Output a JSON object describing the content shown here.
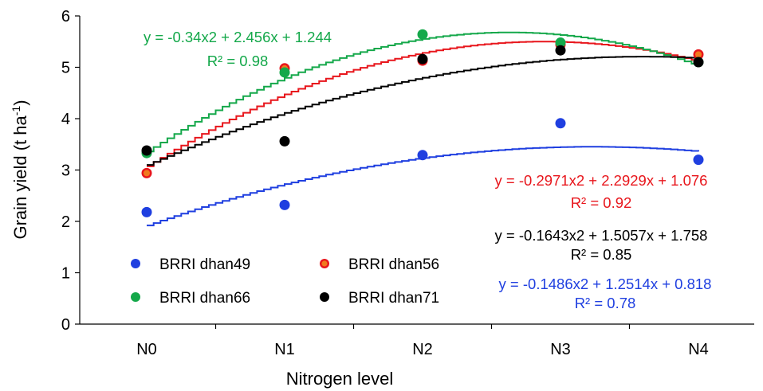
{
  "chart_data": {
    "type": "scatter",
    "xlabel": "Nitrogen level",
    "ylabel": "Grain yield (t ha",
    "ylabel_sup": "-1",
    "ylabel_end": ")",
    "categories": [
      "N0",
      "N1",
      "N2",
      "N3",
      "N4"
    ],
    "ylim": [
      0,
      6
    ],
    "yticks": [
      "0",
      "1",
      "2",
      "3",
      "4",
      "5",
      "6"
    ],
    "grid": false,
    "legend_position": "bottom-left",
    "series": [
      {
        "name": "BRRI dhan49",
        "color": "#1f3fe0",
        "values": [
          2.18,
          2.32,
          3.29,
          3.91,
          3.2
        ],
        "trend": {
          "a": -0.1486,
          "b": 1.2514,
          "c": 0.818
        },
        "equation": "y = -0.1486x2  + 1.2514x  + 0.818",
        "r2": "R² = 0.78"
      },
      {
        "name": "BRRI dhan56",
        "color": "#e8161c",
        "marker_fill": "#f07a1e",
        "values": [
          2.94,
          4.98,
          5.13,
          5.44,
          5.25
        ],
        "trend": {
          "a": -0.2971,
          "b": 2.2929,
          "c": 1.076
        },
        "equation": "y = -0.2971x2  + 2.2929x  + 1.076",
        "r2": "R² = 0.92"
      },
      {
        "name": "BRRI dhan66",
        "color": "#14a84a",
        "values": [
          3.33,
          4.9,
          5.64,
          5.48,
          5.1
        ],
        "trend": {
          "a": -0.34,
          "b": 2.456,
          "c": 1.244
        },
        "equation": "y = -0.34x2  + 2.456x  + 1.244",
        "r2": "R² = 0.98"
      },
      {
        "name": "BRRI dhan71",
        "color": "#000000",
        "values": [
          3.38,
          3.56,
          5.16,
          5.33,
          5.1
        ],
        "trend": {
          "a": -0.1643,
          "b": 1.5057,
          "c": 1.758
        },
        "equation": "y = -0.1643x2  + 1.5057x  + 1.758",
        "r2": "R² = 0.85"
      }
    ]
  }
}
